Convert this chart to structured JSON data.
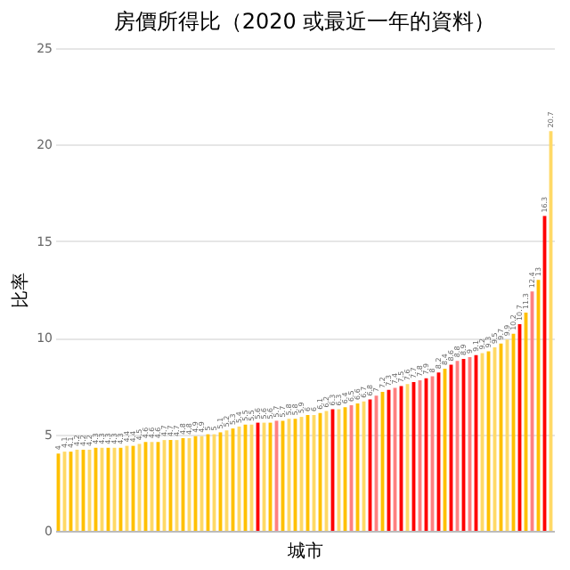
{
  "chart_data": {
    "type": "bar",
    "title": "房價所得比（2020 或最近一年的資料）",
    "xlabel": "城市",
    "ylabel": "比率",
    "categories": [
      null,
      null,
      null,
      null,
      null,
      null,
      null,
      null,
      null,
      null,
      null,
      null,
      null,
      null,
      null,
      null,
      null,
      null,
      null,
      null,
      null,
      null,
      null,
      null,
      null,
      null,
      null,
      null,
      null,
      null,
      null,
      null,
      null,
      null,
      null,
      null,
      null,
      null,
      null,
      null,
      null,
      null,
      null,
      null,
      null,
      null,
      null,
      null,
      null,
      null,
      null,
      null,
      null,
      null,
      null,
      null,
      null,
      null,
      null,
      null,
      null,
      null,
      null,
      null,
      null,
      null,
      null,
      null,
      null,
      null,
      null,
      null,
      null,
      null,
      null,
      null,
      null,
      null,
      null,
      null
    ],
    "values": [
      4.0,
      4.1,
      4.1,
      4.2,
      4.2,
      4.2,
      4.3,
      4.3,
      4.3,
      4.3,
      4.3,
      4.4,
      4.4,
      4.5,
      4.6,
      4.6,
      4.6,
      4.7,
      4.7,
      4.7,
      4.8,
      4.8,
      4.9,
      4.9,
      5.0,
      5.0,
      5.1,
      5.2,
      5.3,
      5.4,
      5.5,
      5.5,
      5.6,
      5.6,
      5.6,
      5.7,
      5.7,
      5.8,
      5.8,
      5.9,
      6.0,
      6.0,
      6.1,
      6.2,
      6.3,
      6.3,
      6.4,
      6.5,
      6.6,
      6.7,
      6.8,
      7.0,
      7.2,
      7.3,
      7.4,
      7.5,
      7.6,
      7.7,
      7.8,
      7.9,
      8.0,
      8.2,
      8.4,
      8.6,
      8.8,
      8.9,
      9.0,
      9.1,
      9.2,
      9.3,
      9.5,
      9.7,
      9.9,
      10.2,
      10.7,
      11.3,
      12.4,
      13.0,
      16.3,
      20.7
    ],
    "colors": [
      "#ffc000",
      "#ffd966",
      "#ffc000",
      "#ffd966",
      "#ffc000",
      "#ffd966",
      "#ffc000",
      "#ffd966",
      "#ffc000",
      "#ffd966",
      "#ffc000",
      "#ffd966",
      "#ffc000",
      "#ffd966",
      "#ffc000",
      "#ffd966",
      "#ffc000",
      "#ffd966",
      "#ffc000",
      "#ffd966",
      "#ffc000",
      "#ffd966",
      "#ffc000",
      "#ffd966",
      "#ffc000",
      "#ffd966",
      "#ffc000",
      "#ffd966",
      "#ffc000",
      "#ffd966",
      "#ffc000",
      "#ffd966",
      "#ff0000",
      "#ffd966",
      "#ffc000",
      "#ff8080",
      "#ffc000",
      "#ffd966",
      "#ffc000",
      "#ffd966",
      "#ffc000",
      "#ffd966",
      "#ffc000",
      "#ffd966",
      "#ff0000",
      "#ffd966",
      "#ffc000",
      "#ff8080",
      "#ffc000",
      "#ffd966",
      "#ff0000",
      "#ff8080",
      "#ffc000",
      "#ff0000",
      "#ff8080",
      "#ff0000",
      "#ffd966",
      "#ff0000",
      "#ff8080",
      "#ff0000",
      "#ff8080",
      "#ff0000",
      "#ffc000",
      "#ff0000",
      "#ff8080",
      "#ff0000",
      "#ff8080",
      "#ff0000",
      "#ffd966",
      "#ffc000",
      "#ffd966",
      "#ffc000",
      "#ffd966",
      "#ffc000",
      "#ff0000",
      "#ffc000",
      "#ff8080",
      "#ffc000",
      "#ff0000",
      "#ffd966"
    ],
    "ylim": [
      0,
      25
    ],
    "yticks": [
      0,
      5,
      10,
      15,
      20,
      25
    ],
    "grid": "y",
    "data_labels": true
  }
}
